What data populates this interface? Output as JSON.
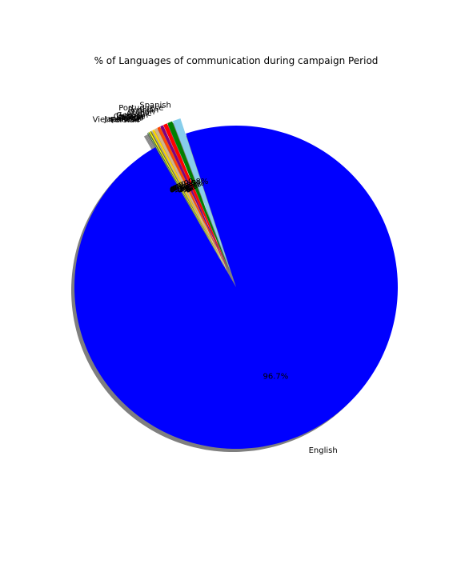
{
  "chart_data": {
    "type": "pie",
    "title": "% of Languages of communication during campaign Period",
    "autopct": "%1.1f%%",
    "shadow": true,
    "start_angle_deg": 120,
    "slices": [
      {
        "label": "English",
        "value": 96.7,
        "pct_text": "96.7%",
        "color": "#0000ff",
        "explode": false
      },
      {
        "label": "Spanish",
        "value": 0.8,
        "pct_text": "0.8%",
        "color": "#87ceeb",
        "explode": true
      },
      {
        "label": "Portuguese",
        "value": 0.5,
        "pct_text": "0.5%",
        "color": "#008000",
        "explode": true
      },
      {
        "label": "Russian",
        "value": 0.4,
        "pct_text": "0.4%",
        "color": "#ff0000",
        "explode": true
      },
      {
        "label": "Italian",
        "value": 0.3,
        "pct_text": "0.3%",
        "color": "#800080",
        "explode": true
      },
      {
        "label": "Arabic",
        "value": 0.3,
        "pct_text": "0.3%",
        "color": "#ff4500",
        "explode": true
      },
      {
        "label": "German",
        "value": 0.3,
        "pct_text": "0.3%",
        "color": "#d2b48c",
        "explode": true
      },
      {
        "label": "Chinese",
        "value": 0.2,
        "pct_text": "0.2%",
        "color": "#ffd700",
        "explode": true
      },
      {
        "label": "Korean",
        "value": 0.1,
        "pct_text": "0.1%",
        "color": "#a9a9a9",
        "explode": true
      },
      {
        "label": "Dutch",
        "value": 0.1,
        "pct_text": "0.1%",
        "color": "#808000",
        "explode": true
      },
      {
        "label": "Polish",
        "value": 0.1,
        "pct_text": "0.1%",
        "color": "#ffff00",
        "explode": true
      },
      {
        "label": "Japanese",
        "value": 0.1,
        "pct_text": "0.1%",
        "color": "#556b2f",
        "explode": true
      },
      {
        "label": "Vietnamese",
        "value": 0.05,
        "pct_text": "0.0%",
        "color": "#90ee90",
        "explode": true
      },
      {
        "label": "Persian",
        "value": 0.05,
        "pct_text": "0.0%",
        "color": "#2f2f2f",
        "explode": true
      }
    ]
  }
}
